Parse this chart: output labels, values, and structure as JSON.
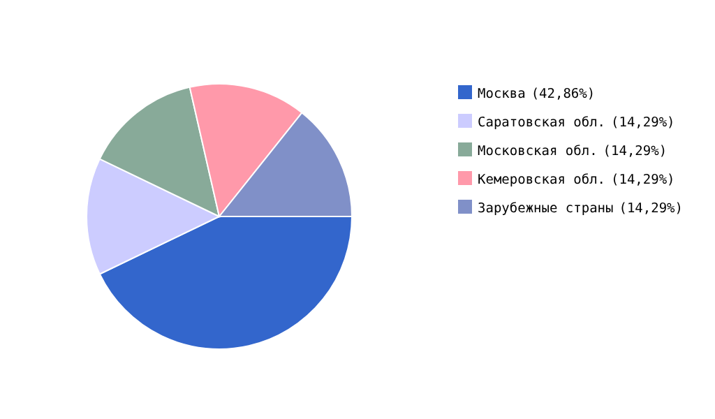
{
  "chart_data": {
    "type": "pie",
    "categories": [
      "Москва",
      "Саратовская обл.",
      "Московская обл.",
      "Кемеровская обл.",
      "Зарубежные страны"
    ],
    "values": [
      42.86,
      14.29,
      14.29,
      14.29,
      14.29
    ],
    "value_labels": [
      "(42,86%)",
      "(14,29%)",
      "(14,29%)",
      "(14,29%)",
      "(14,29%)"
    ],
    "colors": [
      "#3366cc",
      "#ccccff",
      "#88aa99",
      "#ff99aa",
      "#8090c8"
    ],
    "legend": "right"
  }
}
